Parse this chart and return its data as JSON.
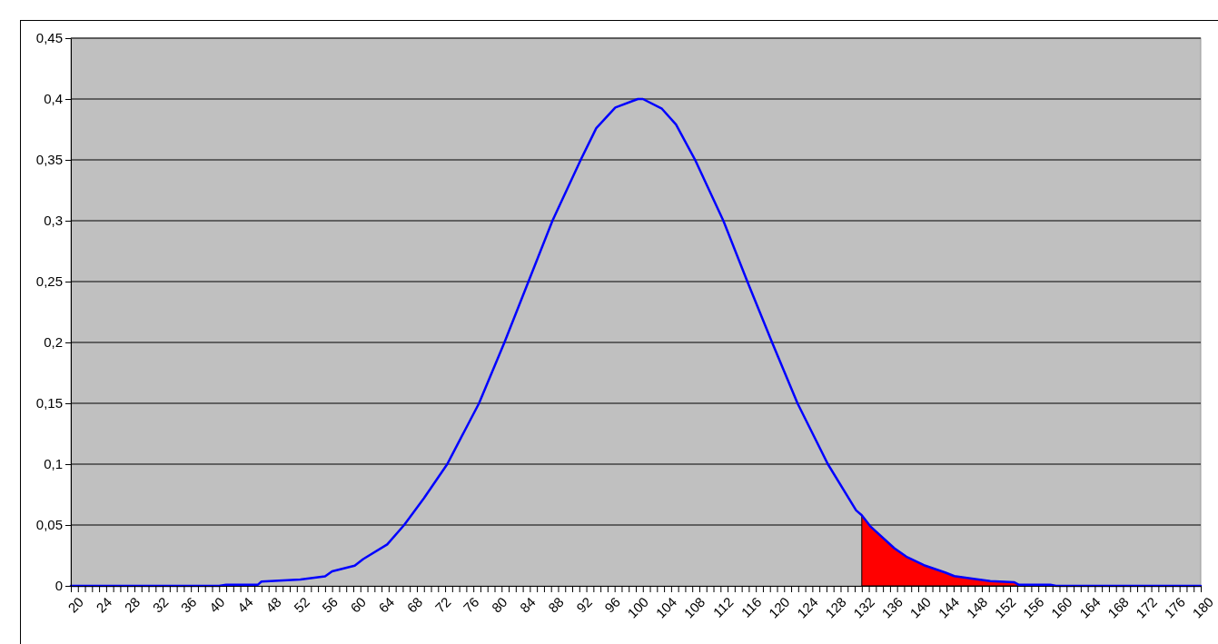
{
  "chart_data": {
    "type": "line",
    "xlim": [
      20,
      180
    ],
    "ylim": [
      0,
      0.45
    ],
    "xticks": [
      20,
      {
        "value": 21,
        "label": null
      },
      {
        "value": 22,
        "label": null
      },
      {
        "value": 23,
        "label": null
      },
      24,
      {
        "value": 25,
        "label": null
      },
      {
        "value": 26,
        "label": null
      },
      {
        "value": 27,
        "label": null
      },
      28,
      {
        "value": 29,
        "label": null
      },
      {
        "value": 30,
        "label": null
      },
      {
        "value": 31,
        "label": null
      },
      32,
      {
        "value": 33,
        "label": null
      },
      {
        "value": 34,
        "label": null
      },
      {
        "value": 35,
        "label": null
      },
      36,
      {
        "value": 37,
        "label": null
      },
      {
        "value": 38,
        "label": null
      },
      {
        "value": 39,
        "label": null
      },
      40,
      {
        "value": 41,
        "label": null
      },
      {
        "value": 42,
        "label": null
      },
      {
        "value": 43,
        "label": null
      },
      44,
      {
        "value": 45,
        "label": null
      },
      {
        "value": 46,
        "label": null
      },
      {
        "value": 47,
        "label": null
      },
      48,
      {
        "value": 49,
        "label": null
      },
      {
        "value": 50,
        "label": null
      },
      {
        "value": 51,
        "label": null
      },
      52,
      {
        "value": 53,
        "label": null
      },
      {
        "value": 54,
        "label": null
      },
      {
        "value": 55,
        "label": null
      },
      56,
      {
        "value": 57,
        "label": null
      },
      {
        "value": 58,
        "label": null
      },
      {
        "value": 59,
        "label": null
      },
      60,
      {
        "value": 61,
        "label": null
      },
      {
        "value": 62,
        "label": null
      },
      {
        "value": 63,
        "label": null
      },
      64,
      {
        "value": 65,
        "label": null
      },
      {
        "value": 66,
        "label": null
      },
      {
        "value": 67,
        "label": null
      },
      68,
      {
        "value": 69,
        "label": null
      },
      {
        "value": 70,
        "label": null
      },
      {
        "value": 71,
        "label": null
      },
      72,
      {
        "value": 73,
        "label": null
      },
      {
        "value": 74,
        "label": null
      },
      {
        "value": 75,
        "label": null
      },
      76,
      {
        "value": 77,
        "label": null
      },
      {
        "value": 78,
        "label": null
      },
      {
        "value": 79,
        "label": null
      },
      80,
      {
        "value": 81,
        "label": null
      },
      {
        "value": 82,
        "label": null
      },
      {
        "value": 83,
        "label": null
      },
      84,
      {
        "value": 85,
        "label": null
      },
      {
        "value": 86,
        "label": null
      },
      {
        "value": 87,
        "label": null
      },
      88,
      {
        "value": 89,
        "label": null
      },
      {
        "value": 90,
        "label": null
      },
      {
        "value": 91,
        "label": null
      },
      92,
      {
        "value": 93,
        "label": null
      },
      {
        "value": 94,
        "label": null
      },
      {
        "value": 95,
        "label": null
      },
      96,
      {
        "value": 97,
        "label": null
      },
      {
        "value": 98,
        "label": null
      },
      {
        "value": 99,
        "label": null
      },
      100,
      {
        "value": 101,
        "label": null
      },
      {
        "value": 102,
        "label": null
      },
      {
        "value": 103,
        "label": null
      },
      104,
      {
        "value": 105,
        "label": null
      },
      {
        "value": 106,
        "label": null
      },
      {
        "value": 107,
        "label": null
      },
      108,
      {
        "value": 109,
        "label": null
      },
      {
        "value": 110,
        "label": null
      },
      {
        "value": 111,
        "label": null
      },
      112,
      {
        "value": 113,
        "label": null
      },
      {
        "value": 114,
        "label": null
      },
      {
        "value": 115,
        "label": null
      },
      116,
      {
        "value": 117,
        "label": null
      },
      {
        "value": 118,
        "label": null
      },
      {
        "value": 119,
        "label": null
      },
      120,
      {
        "value": 121,
        "label": null
      },
      {
        "value": 122,
        "label": null
      },
      {
        "value": 123,
        "label": null
      },
      124,
      {
        "value": 125,
        "label": null
      },
      {
        "value": 126,
        "label": null
      },
      {
        "value": 127,
        "label": null
      },
      128,
      {
        "value": 129,
        "label": null
      },
      {
        "value": 130,
        "label": null
      },
      {
        "value": 131,
        "label": null
      },
      132,
      {
        "value": 133,
        "label": null
      },
      {
        "value": 134,
        "label": null
      },
      {
        "value": 135,
        "label": null
      },
      136,
      {
        "value": 137,
        "label": null
      },
      {
        "value": 138,
        "label": null
      },
      {
        "value": 139,
        "label": null
      },
      140,
      {
        "value": 141,
        "label": null
      },
      {
        "value": 142,
        "label": null
      },
      {
        "value": 143,
        "label": null
      },
      144,
      {
        "value": 145,
        "label": null
      },
      {
        "value": 146,
        "label": null
      },
      {
        "value": 147,
        "label": null
      },
      148,
      {
        "value": 149,
        "label": null
      },
      {
        "value": 150,
        "label": null
      },
      {
        "value": 151,
        "label": null
      },
      152,
      {
        "value": 153,
        "label": null
      },
      {
        "value": 154,
        "label": null
      },
      {
        "value": 155,
        "label": null
      },
      156,
      {
        "value": 157,
        "label": null
      },
      {
        "value": 158,
        "label": null
      },
      {
        "value": 159,
        "label": null
      },
      160,
      {
        "value": 161,
        "label": null
      },
      {
        "value": 162,
        "label": null
      },
      {
        "value": 163,
        "label": null
      },
      164,
      {
        "value": 165,
        "label": null
      },
      {
        "value": 166,
        "label": null
      },
      {
        "value": 167,
        "label": null
      },
      168,
      {
        "value": 169,
        "label": null
      },
      {
        "value": 170,
        "label": null
      },
      {
        "value": 171,
        "label": null
      },
      172,
      {
        "value": 173,
        "label": null
      },
      {
        "value": 174,
        "label": null
      },
      {
        "value": 175,
        "label": null
      },
      176,
      {
        "value": 177,
        "label": null
      },
      {
        "value": 178,
        "label": null
      },
      {
        "value": 179,
        "label": null
      },
      180
    ],
    "yticks": [
      0,
      {
        "value": 0.05,
        "label": "0,05"
      },
      {
        "value": 0.1,
        "label": "0,1"
      },
      {
        "value": 0.15,
        "label": "0,15"
      },
      {
        "value": 0.2,
        "label": "0,2"
      },
      {
        "value": 0.25,
        "label": "0,25"
      },
      {
        "value": 0.3,
        "label": "0,3"
      },
      {
        "value": 0.35,
        "label": "0,35"
      },
      {
        "value": 0.4,
        "label": "0,4"
      },
      {
        "value": 0.45,
        "label": "0,45"
      }
    ],
    "grid": "y",
    "marker": "none",
    "line_style": "solid",
    "series": [
      {
        "type": "area",
        "color": "#ff0000",
        "x": [
          132,
          133.2,
          136.6,
          138.3,
          140.8,
          143.8,
          145.1,
          147.6,
          150.2,
          153.6,
          154.2
        ],
        "values": [
          0.058,
          0.049,
          0.031,
          0.024,
          0.017,
          0.011,
          0.008,
          0.006,
          0.004,
          0.003,
          0.001
        ]
      },
      {
        "color": "#0000ff",
        "x": [
          20,
          41,
          42,
          46.5,
          47,
          52.5,
          56,
          57,
          60.2,
          61.4,
          64.8,
          67.2,
          70,
          73.3,
          77.8,
          81.4,
          84.8,
          88.2,
          92.2,
          94.4,
          97.1,
          100.3,
          101,
          103.7,
          105.7,
          108.4,
          112.4,
          115.8,
          119.3,
          122.9,
          127.2,
          131.2,
          132,
          133.2,
          136.6,
          138.3,
          140.8,
          143.8,
          145.1,
          147.6,
          150.2,
          153.6,
          154.2,
          158.7,
          159.5,
          180
        ],
        "values": [
          0,
          0,
          0.001,
          0.001,
          0.0035,
          0.0053,
          0.0078,
          0.012,
          0.0166,
          0.022,
          0.034,
          0.05,
          0.072,
          0.1,
          0.15,
          0.2,
          0.25,
          0.3,
          0.35,
          0.376,
          0.393,
          0.4,
          0.4,
          0.392,
          0.379,
          0.35,
          0.3,
          0.25,
          0.2,
          0.15,
          0.1,
          0.062,
          0.058,
          0.049,
          0.031,
          0.024,
          0.017,
          0.011,
          0.008,
          0.006,
          0.004,
          0.003,
          0.001,
          0.001,
          0,
          0
        ]
      }
    ]
  }
}
